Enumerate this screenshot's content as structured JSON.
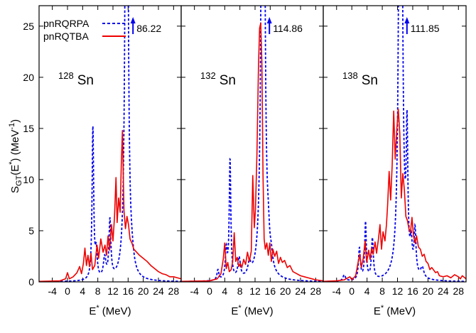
{
  "chart_data": {
    "type": "line",
    "xlabel": {
      "main": "E",
      "sup": "*",
      "unit": " (MeV)"
    },
    "ylabel": {
      "main": "S",
      "sub": "GT",
      "mid": "(E",
      "sup": "*",
      "mid2": ") (MeV",
      "sup2": "-1",
      "end": ")"
    },
    "xlim": [
      -7.5,
      30
    ],
    "ylim": [
      0,
      27
    ],
    "xticks": [
      -4,
      0,
      4,
      8,
      12,
      16,
      20,
      24,
      28
    ],
    "xtick_labels": [
      "-4",
      "0",
      "4",
      "8",
      "12",
      "16",
      "20",
      "24",
      "28"
    ],
    "yticks": [
      0,
      5,
      10,
      15,
      20,
      25
    ],
    "ytick_labels": [
      "0",
      "5",
      "10",
      "15",
      "20",
      "25"
    ],
    "legend": {
      "placement": "top-left",
      "entries": [
        {
          "name": "pnRQRPA",
          "color": "#0000ee",
          "style": "dashed"
        },
        {
          "name": "pnRQTBA",
          "color": "#ee0000",
          "style": "solid"
        }
      ]
    },
    "panels": [
      {
        "nucleus": "Sn",
        "mass": "128",
        "peak_arrow": {
          "x": 15.6,
          "label": "86.22"
        },
        "series": [
          {
            "name": "pnRQRPA",
            "color": "#0000ee",
            "peaks": [
              [
                6.7,
                14.8,
                0.25
              ],
              [
                7.6,
                2.5,
                0.3
              ],
              [
                9.8,
                2.0,
                0.4
              ],
              [
                11.2,
                5.6,
                0.3
              ],
              [
                15.6,
                86.22,
                0.32
              ],
              [
                17.0,
                1.0,
                0.6
              ]
            ]
          },
          {
            "name": "pnRQTBA",
            "color": "#ee0000",
            "points": [
              [
                -7.5,
                0.05
              ],
              [
                -2,
                0.1
              ],
              [
                -0.5,
                0.3
              ],
              [
                0,
                0.9
              ],
              [
                0.5,
                0.3
              ],
              [
                1.5,
                0.5
              ],
              [
                2.5,
                0.9
              ],
              [
                3.2,
                1.5
              ],
              [
                3.7,
                0.8
              ],
              [
                4.2,
                1.8
              ],
              [
                4.6,
                3.3
              ],
              [
                5.0,
                1.6
              ],
              [
                5.4,
                2.6
              ],
              [
                5.8,
                1.5
              ],
              [
                6.2,
                2.8
              ],
              [
                6.6,
                1.2
              ],
              [
                7.2,
                1.6
              ],
              [
                7.8,
                3.6
              ],
              [
                8.2,
                2.3
              ],
              [
                8.8,
                4.2
              ],
              [
                9.4,
                2.9
              ],
              [
                9.9,
                3.6
              ],
              [
                10.3,
                2.6
              ],
              [
                10.7,
                4.5
              ],
              [
                11.1,
                3.1
              ],
              [
                11.6,
                5.6
              ],
              [
                12.0,
                4.0
              ],
              [
                12.4,
                6.3
              ],
              [
                12.8,
                10.2
              ],
              [
                13.1,
                5.8
              ],
              [
                13.5,
                8.2
              ],
              [
                13.9,
                6.8
              ],
              [
                14.2,
                11.5
              ],
              [
                14.5,
                14.8
              ],
              [
                14.9,
                7.0
              ],
              [
                15.3,
                5.2
              ],
              [
                15.7,
                6.4
              ],
              [
                16.1,
                5.6
              ],
              [
                16.5,
                4.2
              ],
              [
                17.0,
                3.8
              ],
              [
                17.5,
                3.2
              ],
              [
                18,
                3.0
              ],
              [
                19,
                2.6
              ],
              [
                20,
                2.3
              ],
              [
                21,
                2.0
              ],
              [
                22,
                1.6
              ],
              [
                23,
                1.3
              ],
              [
                24,
                1.0
              ],
              [
                25,
                0.8
              ],
              [
                26,
                0.7
              ],
              [
                27,
                0.5
              ],
              [
                28,
                0.5
              ],
              [
                29,
                0.4
              ],
              [
                30,
                0.3
              ]
            ]
          }
        ]
      },
      {
        "nucleus": "Sn",
        "mass": "132",
        "peak_arrow": {
          "x": 14.1,
          "label": "114.86"
        },
        "series": [
          {
            "name": "pnRQRPA",
            "color": "#0000ee",
            "peaks": [
              [
                2.2,
                1.0,
                0.3
              ],
              [
                4.4,
                2.8,
                0.3
              ],
              [
                5.4,
                11.6,
                0.25
              ],
              [
                7.8,
                2.0,
                0.4
              ],
              [
                10.5,
                1.2,
                0.5
              ],
              [
                14.1,
                114.86,
                0.32
              ],
              [
                15.5,
                2.0,
                0.4
              ],
              [
                16.3,
                1.0,
                0.4
              ]
            ]
          },
          {
            "name": "pnRQTBA",
            "color": "#ee0000",
            "points": [
              [
                -7.5,
                0.05
              ],
              [
                0,
                0.1
              ],
              [
                2,
                0.3
              ],
              [
                3,
                0.8
              ],
              [
                3.6,
                2.2
              ],
              [
                4.0,
                3.8
              ],
              [
                4.4,
                1.3
              ],
              [
                4.8,
                1.9
              ],
              [
                5.2,
                1.0
              ],
              [
                5.7,
                1.2
              ],
              [
                6.1,
                2.0
              ],
              [
                6.5,
                4.8
              ],
              [
                6.9,
                2.0
              ],
              [
                7.3,
                2.4
              ],
              [
                7.7,
                1.5
              ],
              [
                8.1,
                1.8
              ],
              [
                8.5,
                1.4
              ],
              [
                9.0,
                2.2
              ],
              [
                9.5,
                1.7
              ],
              [
                10.0,
                2.9
              ],
              [
                10.5,
                2.0
              ],
              [
                11.0,
                3.0
              ],
              [
                11.4,
                10.4
              ],
              [
                11.8,
                5.3
              ],
              [
                12.1,
                7.0
              ],
              [
                12.5,
                12.5
              ],
              [
                12.9,
                21.0
              ],
              [
                13.2,
                24.8
              ],
              [
                13.5,
                25.3
              ],
              [
                13.8,
                21.5
              ],
              [
                14.1,
                10.5
              ],
              [
                14.4,
                4.2
              ],
              [
                14.7,
                3.2
              ],
              [
                15.1,
                3.8
              ],
              [
                15.5,
                2.6
              ],
              [
                15.9,
                3.8
              ],
              [
                16.3,
                2.0
              ],
              [
                16.7,
                3.2
              ],
              [
                17.2,
                2.5
              ],
              [
                17.7,
                3.0
              ],
              [
                18.2,
                1.8
              ],
              [
                18.7,
                2.4
              ],
              [
                19.2,
                1.9
              ],
              [
                19.8,
                2.1
              ],
              [
                20.5,
                1.4
              ],
              [
                21.2,
                1.6
              ],
              [
                22,
                1.0
              ],
              [
                23,
                0.8
              ],
              [
                24,
                0.6
              ],
              [
                25,
                0.5
              ],
              [
                26,
                0.4
              ],
              [
                27,
                0.3
              ],
              [
                28,
                0.2
              ],
              [
                30,
                0.1
              ]
            ]
          }
        ]
      },
      {
        "nucleus": "Sn",
        "mass": "138",
        "peak_arrow": {
          "x": 12.8,
          "label": "111.85"
        },
        "series": [
          {
            "name": "pnRQRPA",
            "color": "#0000ee",
            "peaks": [
              [
                -2.0,
                0.6,
                0.4
              ],
              [
                2.0,
                3.1,
                0.3
              ],
              [
                3.6,
                5.6,
                0.25
              ],
              [
                5.4,
                4.0,
                0.3
              ],
              [
                12.8,
                111.85,
                0.32
              ],
              [
                14.5,
                12.7,
                0.25
              ],
              [
                15.6,
                2.5,
                0.3
              ],
              [
                16.6,
                4.3,
                0.3
              ],
              [
                18.5,
                1.0,
                0.5
              ]
            ]
          },
          {
            "name": "pnRQTBA",
            "color": "#ee0000",
            "points": [
              [
                -7.5,
                0.05
              ],
              [
                -4,
                0.1
              ],
              [
                -2,
                0.2
              ],
              [
                -0.5,
                0.5
              ],
              [
                0,
                0.2
              ],
              [
                1,
                0.6
              ],
              [
                1.6,
                1.8
              ],
              [
                2.1,
                2.7
              ],
              [
                2.5,
                1.4
              ],
              [
                3.0,
                2.3
              ],
              [
                3.5,
                4.0
              ],
              [
                3.9,
                1.9
              ],
              [
                4.4,
                3.1
              ],
              [
                4.8,
                2.2
              ],
              [
                5.2,
                3.3
              ],
              [
                5.6,
                2.7
              ],
              [
                6.1,
                3.9
              ],
              [
                6.5,
                2.8
              ],
              [
                7.0,
                4.2
              ],
              [
                7.4,
                5.6
              ],
              [
                7.8,
                3.2
              ],
              [
                8.2,
                4.9
              ],
              [
                8.7,
                4.0
              ],
              [
                9.1,
                5.6
              ],
              [
                9.4,
                7.5
              ],
              [
                9.8,
                10.8
              ],
              [
                10.2,
                8.0
              ],
              [
                10.6,
                11.4
              ],
              [
                11.0,
                16.7
              ],
              [
                11.4,
                12.0
              ],
              [
                11.8,
                14.8
              ],
              [
                12.2,
                16.9
              ],
              [
                12.6,
                14.5
              ],
              [
                13.0,
                8.2
              ],
              [
                13.4,
                10.6
              ],
              [
                13.8,
                9.0
              ],
              [
                14.2,
                6.4
              ],
              [
                14.6,
                6.0
              ],
              [
                15.0,
                5.2
              ],
              [
                15.4,
                4.8
              ],
              [
                15.8,
                6.3
              ],
              [
                16.2,
                4.5
              ],
              [
                16.6,
                3.8
              ],
              [
                17.0,
                4.5
              ],
              [
                17.5,
                3.4
              ],
              [
                18,
                3.2
              ],
              [
                18.5,
                2.5
              ],
              [
                19.0,
                2.7
              ],
              [
                19.5,
                2.0
              ],
              [
                20,
                1.8
              ],
              [
                20.5,
                1.2
              ],
              [
                21,
                1.4
              ],
              [
                22,
                0.9
              ],
              [
                22.5,
                1.0
              ],
              [
                23,
                0.6
              ],
              [
                24,
                0.5
              ],
              [
                25,
                0.6
              ],
              [
                26,
                0.4
              ],
              [
                27,
                0.7
              ],
              [
                28,
                0.5
              ],
              [
                28.5,
                0.3
              ],
              [
                29,
                0.6
              ],
              [
                30,
                0.3
              ]
            ]
          }
        ]
      }
    ]
  }
}
